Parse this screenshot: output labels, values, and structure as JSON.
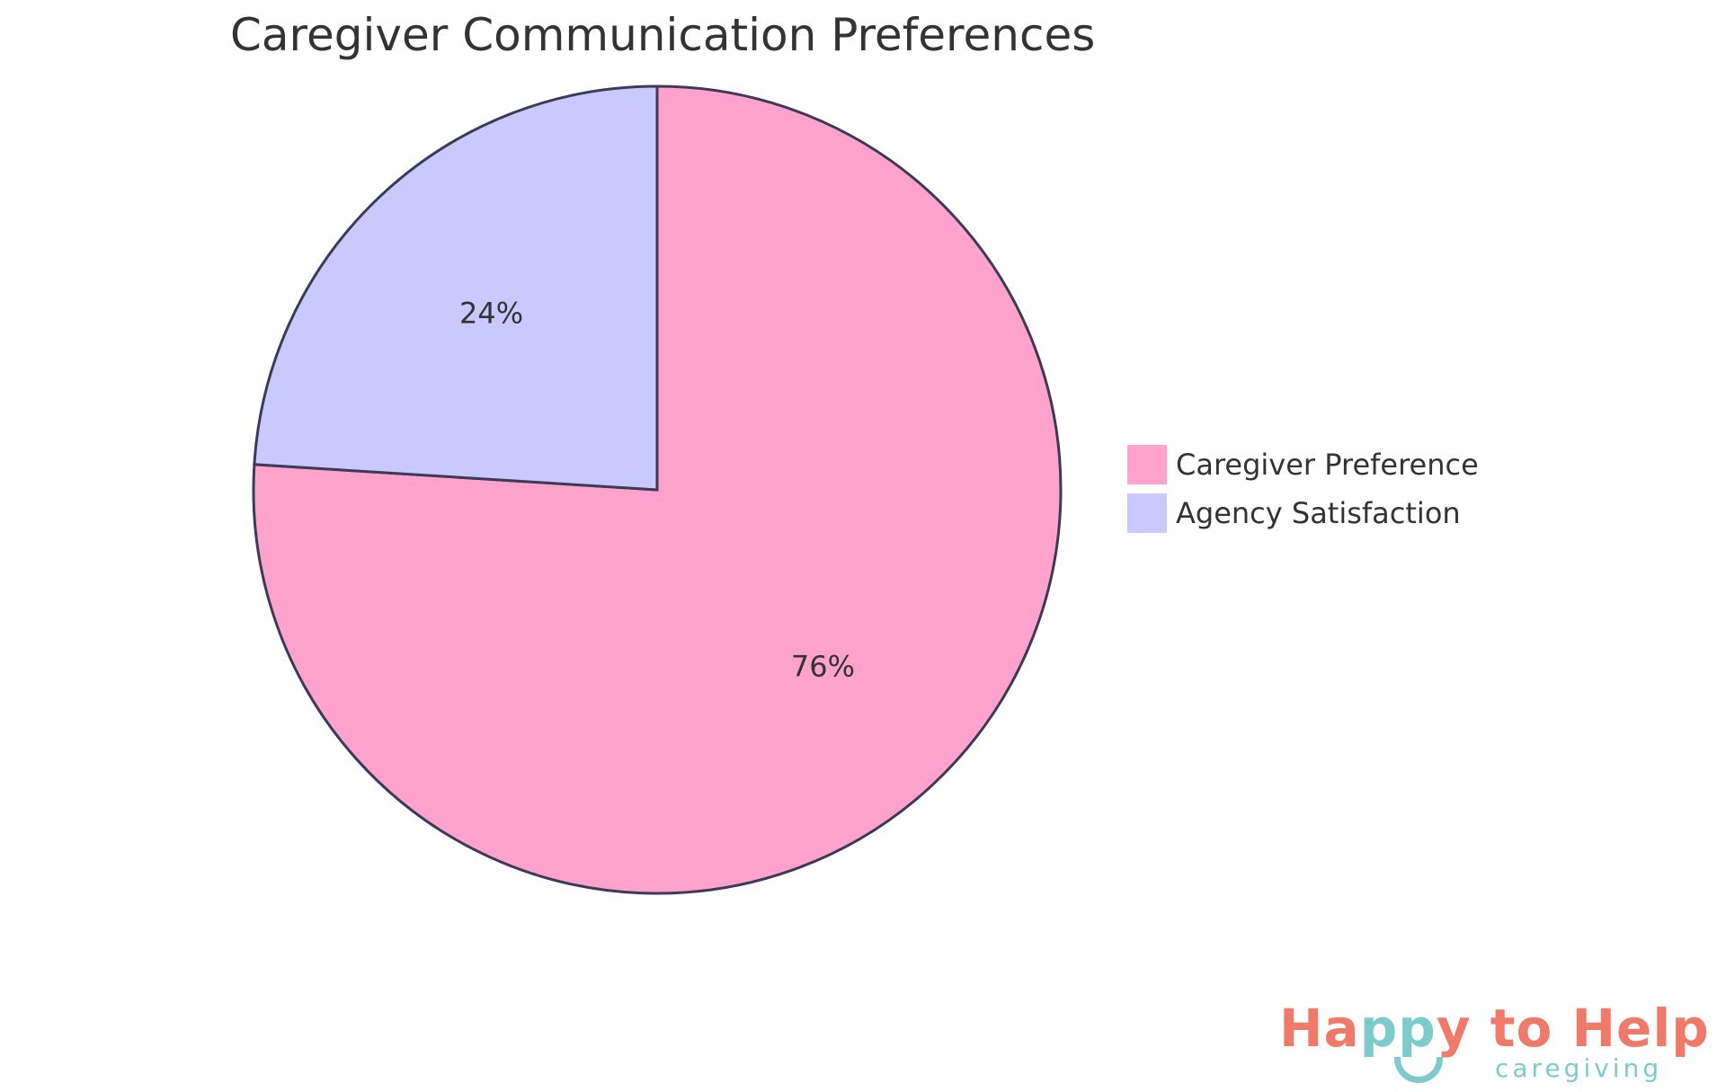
{
  "chart_data": {
    "type": "pie",
    "title": "Caregiver Communication Preferences",
    "series": [
      {
        "name": "Caregiver Preference",
        "value": 76,
        "label": "76%",
        "color": "#FFA2CC"
      },
      {
        "name": "Agency Satisfaction",
        "value": 24,
        "label": "24%",
        "color": "#C9C9FF"
      }
    ],
    "stroke_color": "#3d3a56",
    "start_angle": "12 o'clock",
    "direction": "clockwise",
    "legend_position": "right"
  },
  "logo": {
    "text_main_1": "Ha",
    "text_main_2": "pp",
    "text_main_3": "y to Help",
    "text_sub": "caregiving",
    "primary_color": "#f07a6a",
    "secondary_color": "#7ecbcb"
  }
}
